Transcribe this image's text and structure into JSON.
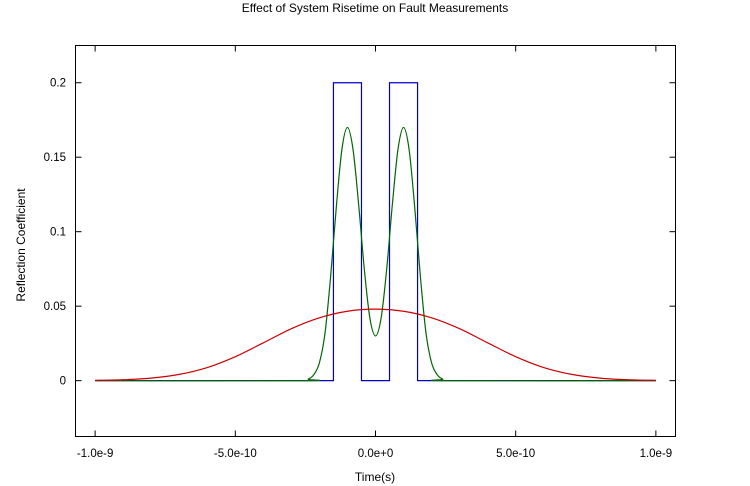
{
  "chart_data": {
    "type": "line",
    "title": "Effect of System Risetime on Fault Measurements",
    "xlabel": "Time(s)",
    "ylabel": "Reflection Coefficient",
    "xlim": [
      -1.07e-09,
      1.07e-09
    ],
    "ylim": [
      -0.0375,
      0.225
    ],
    "x_ticks": [
      {
        "value": -1e-09,
        "label": "-1.0e-9"
      },
      {
        "value": -5e-10,
        "label": "-5.0e-10"
      },
      {
        "value": 0,
        "label": "0.0e+0"
      },
      {
        "value": 5e-10,
        "label": "5.0e-10"
      },
      {
        "value": 1e-09,
        "label": "1.0e-9"
      }
    ],
    "y_ticks": [
      {
        "value": 0,
        "label": "0"
      },
      {
        "value": 0.05,
        "label": "0.05"
      },
      {
        "value": 0.1,
        "label": "0.1"
      },
      {
        "value": 0.15,
        "label": "0.15"
      },
      {
        "value": 0.2,
        "label": "0.2"
      }
    ],
    "grid": false,
    "legend": "none",
    "series": [
      {
        "color": "#0000cc",
        "x": [
          -1e-09,
          -1.5e-10,
          -1.5e-10,
          -5e-11,
          -5e-11,
          5e-11,
          5e-11,
          1.5e-10,
          1.5e-10,
          1e-09
        ],
        "y": [
          0,
          0,
          0.2,
          0.2,
          0,
          0,
          0.2,
          0.2,
          0,
          0
        ]
      },
      {
        "color": "#006600",
        "x": [
          -1e-09,
          -2.6e-10,
          -2.4e-10,
          -2.2e-10,
          -2e-10,
          -1.8e-10,
          -1.6e-10,
          -1.4e-10,
          -1.2e-10,
          -1e-10,
          -8e-11,
          -6e-11,
          -4e-11,
          -2e-11,
          0,
          2e-11,
          4e-11,
          6e-11,
          8e-11,
          1e-10,
          1.2e-10,
          1.4e-10,
          1.6e-10,
          1.8e-10,
          2e-10,
          2.2e-10,
          2.4e-10,
          2.6e-10,
          1e-09
        ],
        "y": [
          0,
          0,
          0.001,
          0.004,
          0.012,
          0.032,
          0.07,
          0.116,
          0.155,
          0.17,
          0.155,
          0.118,
          0.075,
          0.042,
          0.03,
          0.042,
          0.075,
          0.118,
          0.155,
          0.17,
          0.155,
          0.116,
          0.07,
          0.032,
          0.012,
          0.004,
          0.001,
          0,
          0
        ]
      },
      {
        "color": "#cc0000",
        "x": [
          -1e-09,
          -9e-10,
          -8e-10,
          -7e-10,
          -6e-10,
          -5e-10,
          -4e-10,
          -3e-10,
          -2e-10,
          -1e-10,
          0,
          1e-10,
          2e-10,
          3e-10,
          4e-10,
          5e-10,
          6e-10,
          7e-10,
          8e-10,
          9e-10,
          1e-09
        ],
        "y": [
          0.0002,
          0.0006,
          0.0017,
          0.0042,
          0.0088,
          0.0161,
          0.0254,
          0.0349,
          0.0422,
          0.0466,
          0.048,
          0.0466,
          0.0422,
          0.0349,
          0.0254,
          0.0161,
          0.0088,
          0.0042,
          0.0017,
          0.0006,
          0.0002
        ]
      }
    ]
  }
}
